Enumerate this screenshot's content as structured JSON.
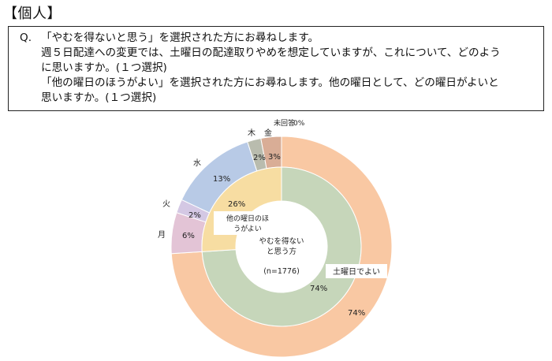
{
  "section_title": "【個人】",
  "question": {
    "label": "Q.",
    "lines": [
      "「やむを得ないと思う」を選択された方にお尋ねします。",
      "週５日配達への変更では、土曜日の配達取りやめを想定していますが、これについて、どのよう",
      "に思いますか。(１つ選択)",
      "「他の曜日のほうがよい」を選択された方にお尋ねします。他の曜日として、どの曜日がよいと",
      "思いますか。(１つ選択)"
    ]
  },
  "chart_data": {
    "type": "pie",
    "n_label": "(n=1776)",
    "inner_ring": {
      "categories": [
        "やむを得ないと思う方",
        "他の曜日のほうがよい"
      ],
      "values": [
        74,
        26
      ],
      "labels": [
        "74%",
        "26%"
      ],
      "colors": [
        "#c6d6ba",
        "#f7dda2"
      ]
    },
    "outer_ring": {
      "categories": [
        "土曜日でよい",
        "月",
        "火",
        "水",
        "木",
        "金",
        "未回答"
      ],
      "values": [
        74,
        6,
        2,
        13,
        2,
        3,
        0
      ],
      "labels": [
        "74%",
        "6%",
        "2%",
        "13%",
        "2%",
        "3%",
        "0%"
      ],
      "colors": [
        "#f9c8a3",
        "#e3c4d6",
        "#d4c8e4",
        "#b8cae6",
        "#b9bcae",
        "#d9ad96",
        "#e2a487"
      ]
    }
  }
}
